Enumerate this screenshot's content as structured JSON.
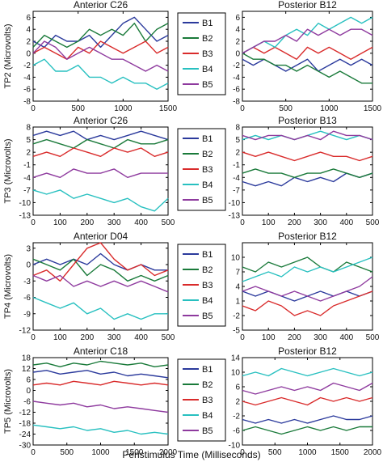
{
  "figure": {
    "xlabel": "Peristimulus Time (Milliseconds)"
  },
  "colors": {
    "B1": "#2b3a9c",
    "B2": "#1a7a3a",
    "B3": "#d92b2b",
    "B4": "#28c0c0",
    "B5": "#8e3a9e"
  },
  "chart_data": [
    {
      "type": "line",
      "row": 1,
      "side": "left",
      "title": "Anterior C26",
      "ylabel": "TP2 (Microvolts)",
      "xlabel": "",
      "xlim": [
        0,
        1500
      ],
      "ylim": [
        -8,
        7
      ],
      "xticks": [
        "0",
        "500",
        "1000",
        "1500"
      ],
      "yticks": [
        "6",
        "4",
        "2",
        "0",
        "-2",
        "-4",
        "-6",
        "-8"
      ],
      "x": [
        0,
        125,
        250,
        375,
        500,
        625,
        750,
        875,
        1000,
        1125,
        1250,
        1375,
        1500
      ],
      "series": [
        {
          "name": "B1",
          "values": [
            2,
            1,
            3,
            2,
            2,
            3,
            1,
            3,
            5,
            6,
            4,
            2,
            3
          ]
        },
        {
          "name": "B2",
          "values": [
            1,
            3,
            2,
            1,
            2,
            4,
            3,
            4,
            3,
            5,
            2,
            4,
            5
          ]
        },
        {
          "name": "B3",
          "values": [
            0,
            1,
            0,
            -1,
            1,
            0,
            2,
            1,
            0,
            1,
            2,
            0,
            1
          ]
        },
        {
          "name": "B4",
          "values": [
            -2,
            -1,
            -3,
            -3,
            -2,
            -4,
            -4,
            -5,
            -4,
            -5,
            -5,
            -6,
            -5
          ]
        },
        {
          "name": "B5",
          "values": [
            0,
            2,
            1,
            -1,
            0,
            1,
            0,
            -1,
            -1,
            -2,
            -3,
            -2,
            -3
          ]
        }
      ]
    },
    {
      "type": "line",
      "row": 1,
      "side": "right",
      "title": "Posterior B12",
      "ylabel": "",
      "xlabel": "",
      "xlim": [
        0,
        1500
      ],
      "ylim": [
        -8,
        7
      ],
      "xticks": [
        "0",
        "500",
        "1000",
        "1500"
      ],
      "yticks": [
        "6",
        "4",
        "2",
        "0",
        "-2",
        "-4",
        "-6",
        "-8"
      ],
      "x": [
        0,
        125,
        250,
        375,
        500,
        625,
        750,
        875,
        1000,
        1125,
        1250,
        1375,
        1500
      ],
      "series": [
        {
          "name": "B1",
          "values": [
            -1,
            -2,
            -1,
            -2,
            -3,
            -2,
            -1,
            -3,
            -2,
            -1,
            -2,
            -1,
            -2
          ]
        },
        {
          "name": "B2",
          "values": [
            0,
            -1,
            -1,
            -2,
            -2,
            -3,
            -2,
            -3,
            -4,
            -3,
            -4,
            -5,
            -5
          ]
        },
        {
          "name": "B3",
          "values": [
            0,
            1,
            0,
            1,
            0,
            -1,
            1,
            0,
            1,
            0,
            -1,
            0,
            1
          ]
        },
        {
          "name": "B4",
          "values": [
            0,
            1,
            2,
            1,
            3,
            4,
            3,
            5,
            4,
            5,
            6,
            5,
            6
          ]
        },
        {
          "name": "B5",
          "values": [
            0,
            1,
            2,
            2,
            3,
            2,
            4,
            3,
            4,
            3,
            4,
            4,
            3
          ]
        }
      ]
    },
    {
      "type": "line",
      "row": 2,
      "side": "left",
      "title": "Anterior C26",
      "ylabel": "TP3 (Microvolts)",
      "xlabel": "",
      "xlim": [
        0,
        500
      ],
      "ylim": [
        -13,
        8
      ],
      "xticks": [
        "0",
        "100",
        "200",
        "300",
        "400",
        "500"
      ],
      "yticks": [
        "8",
        "5",
        "2",
        "-1",
        "-4",
        "-7",
        "-10",
        "-13"
      ],
      "x": [
        0,
        50,
        100,
        150,
        200,
        250,
        300,
        350,
        400,
        450,
        500
      ],
      "series": [
        {
          "name": "B1",
          "values": [
            6,
            7,
            6,
            7,
            5,
            6,
            5,
            6,
            7,
            6,
            5
          ]
        },
        {
          "name": "B2",
          "values": [
            4,
            5,
            4,
            3,
            5,
            4,
            3,
            5,
            4,
            4,
            5
          ]
        },
        {
          "name": "B3",
          "values": [
            1,
            2,
            1,
            3,
            2,
            1,
            3,
            2,
            3,
            1,
            2
          ]
        },
        {
          "name": "B4",
          "values": [
            -7,
            -8,
            -7,
            -9,
            -8,
            -9,
            -10,
            -9,
            -11,
            -12,
            -9
          ]
        },
        {
          "name": "B5",
          "values": [
            -4,
            -3,
            -4,
            -2,
            -3,
            -3,
            -2,
            -4,
            -3,
            -3,
            -3
          ]
        }
      ]
    },
    {
      "type": "line",
      "row": 2,
      "side": "right",
      "title": "Posterior B13",
      "ylabel": "",
      "xlabel": "",
      "xlim": [
        0,
        500
      ],
      "ylim": [
        -13,
        8
      ],
      "xticks": [
        "0",
        "100",
        "200",
        "300",
        "400",
        "500"
      ],
      "yticks": [
        "8",
        "5",
        "2",
        "-1",
        "-4",
        "-7",
        "-10",
        "-13"
      ],
      "x": [
        0,
        50,
        100,
        150,
        200,
        250,
        300,
        350,
        400,
        450,
        500
      ],
      "series": [
        {
          "name": "B1",
          "values": [
            -5,
            -6,
            -5,
            -6,
            -4,
            -5,
            -4,
            -5,
            -3,
            -4,
            -3
          ]
        },
        {
          "name": "B2",
          "values": [
            -3,
            -2,
            -3,
            -3,
            -4,
            -3,
            -3,
            -2,
            -3,
            -4,
            -3
          ]
        },
        {
          "name": "B3",
          "values": [
            2,
            1,
            2,
            1,
            0,
            1,
            2,
            1,
            1,
            0,
            1
          ]
        },
        {
          "name": "B4",
          "values": [
            5,
            6,
            5,
            6,
            5,
            6,
            7,
            6,
            5,
            6,
            5
          ]
        },
        {
          "name": "B5",
          "values": [
            6,
            5,
            6,
            6,
            5,
            6,
            5,
            7,
            6,
            6,
            5
          ]
        }
      ]
    },
    {
      "type": "line",
      "row": 3,
      "side": "left",
      "title": "Anterior D04",
      "ylabel": "TP4 (Microvolts)",
      "xlabel": "",
      "xlim": [
        0,
        500
      ],
      "ylim": [
        -12,
        4
      ],
      "xticks": [
        "0",
        "100",
        "200",
        "300",
        "400",
        "500"
      ],
      "yticks": [
        "3",
        "0",
        "-3",
        "-6",
        "-9",
        "-12"
      ],
      "x": [
        0,
        50,
        100,
        150,
        200,
        250,
        300,
        350,
        400,
        450,
        500
      ],
      "series": [
        {
          "name": "B1",
          "values": [
            0,
            1,
            0,
            1,
            0,
            2,
            0,
            -1,
            0,
            -1,
            -1
          ]
        },
        {
          "name": "B2",
          "values": [
            1,
            0,
            -1,
            1,
            -2,
            0,
            -1,
            -3,
            -2,
            -3,
            -2
          ]
        },
        {
          "name": "B3",
          "values": [
            -2,
            -1,
            -3,
            0,
            3,
            4,
            1,
            -1,
            0,
            -2,
            -1
          ]
        },
        {
          "name": "B4",
          "values": [
            -6,
            -7,
            -8,
            -7,
            -9,
            -8,
            -10,
            -9,
            -10,
            -9,
            -9
          ]
        },
        {
          "name": "B5",
          "values": [
            -2,
            -3,
            -2,
            -4,
            -3,
            -4,
            -3,
            -4,
            -3,
            -4,
            -5
          ]
        }
      ]
    },
    {
      "type": "line",
      "row": 3,
      "side": "right",
      "title": "Posterior B12",
      "ylabel": "",
      "xlabel": "",
      "xlim": [
        0,
        500
      ],
      "ylim": [
        -5,
        13
      ],
      "xticks": [
        "0",
        "100",
        "200",
        "300",
        "400",
        "500"
      ],
      "yticks": [
        "10",
        "7",
        "4",
        "1",
        "-2",
        "-5"
      ],
      "x": [
        0,
        50,
        100,
        150,
        200,
        250,
        300,
        350,
        400,
        450,
        500
      ],
      "series": [
        {
          "name": "B1",
          "values": [
            3,
            2,
            3,
            2,
            1,
            2,
            3,
            2,
            3,
            2,
            3
          ]
        },
        {
          "name": "B2",
          "values": [
            8,
            7,
            9,
            8,
            9,
            10,
            8,
            7,
            9,
            8,
            7
          ]
        },
        {
          "name": "B3",
          "values": [
            0,
            -1,
            1,
            0,
            -2,
            -1,
            -2,
            0,
            1,
            2,
            3
          ]
        },
        {
          "name": "B4",
          "values": [
            5,
            6,
            7,
            6,
            8,
            7,
            8,
            7,
            8,
            9,
            10
          ]
        },
        {
          "name": "B5",
          "values": [
            3,
            4,
            3,
            2,
            3,
            2,
            1,
            2,
            3,
            4,
            6
          ]
        }
      ]
    },
    {
      "type": "line",
      "row": 4,
      "side": "left",
      "title": "Anterior C18",
      "ylabel": "TP5 (Microvolts)",
      "xlabel": "Peristimulus Time (Milliseconds)",
      "xlim": [
        0,
        2000
      ],
      "ylim": [
        -30,
        18
      ],
      "xticks": [
        "0",
        "500",
        "1000",
        "1500",
        "2000"
      ],
      "yticks": [
        "18",
        "12",
        "6",
        "0",
        "-6",
        "-12",
        "-18",
        "-24",
        "-30"
      ],
      "x": [
        0,
        200,
        400,
        600,
        800,
        1000,
        1200,
        1400,
        1600,
        1800,
        2000
      ],
      "series": [
        {
          "name": "B1",
          "values": [
            10,
            11,
            9,
            10,
            11,
            9,
            10,
            8,
            9,
            8,
            7
          ]
        },
        {
          "name": "B2",
          "values": [
            14,
            15,
            13,
            15,
            14,
            16,
            15,
            14,
            15,
            13,
            14
          ]
        },
        {
          "name": "B3",
          "values": [
            3,
            4,
            3,
            5,
            4,
            3,
            5,
            4,
            3,
            4,
            3
          ]
        },
        {
          "name": "B4",
          "values": [
            -19,
            -20,
            -21,
            -20,
            -22,
            -21,
            -23,
            -22,
            -24,
            -23,
            -24
          ]
        },
        {
          "name": "B5",
          "values": [
            -6,
            -7,
            -8,
            -7,
            -9,
            -8,
            -10,
            -9,
            -10,
            -11,
            -12
          ]
        }
      ]
    },
    {
      "type": "line",
      "row": 4,
      "side": "right",
      "title": "Posterior B12",
      "ylabel": "",
      "xlabel": "Peristimulus Time (Milliseconds)",
      "xlim": [
        0,
        2000
      ],
      "ylim": [
        -10,
        14
      ],
      "xticks": [
        "0",
        "500",
        "1000",
        "1500",
        "2000"
      ],
      "yticks": [
        "14",
        "10",
        "6",
        "2",
        "-2",
        "-6",
        "-10"
      ],
      "x": [
        0,
        200,
        400,
        600,
        800,
        1000,
        1200,
        1400,
        1600,
        1800,
        2000
      ],
      "series": [
        {
          "name": "B1",
          "values": [
            -3,
            -4,
            -3,
            -4,
            -3,
            -4,
            -3,
            -2,
            -3,
            -3,
            -2
          ]
        },
        {
          "name": "B2",
          "values": [
            -6,
            -5,
            -6,
            -7,
            -6,
            -5,
            -6,
            -5,
            -6,
            -5,
            -5
          ]
        },
        {
          "name": "B3",
          "values": [
            2,
            1,
            2,
            3,
            2,
            1,
            3,
            2,
            3,
            2,
            3
          ]
        },
        {
          "name": "B4",
          "values": [
            9,
            10,
            9,
            11,
            10,
            9,
            10,
            11,
            10,
            9,
            10
          ]
        },
        {
          "name": "B5",
          "values": [
            5,
            4,
            5,
            6,
            5,
            6,
            5,
            7,
            6,
            5,
            7
          ]
        }
      ]
    }
  ]
}
